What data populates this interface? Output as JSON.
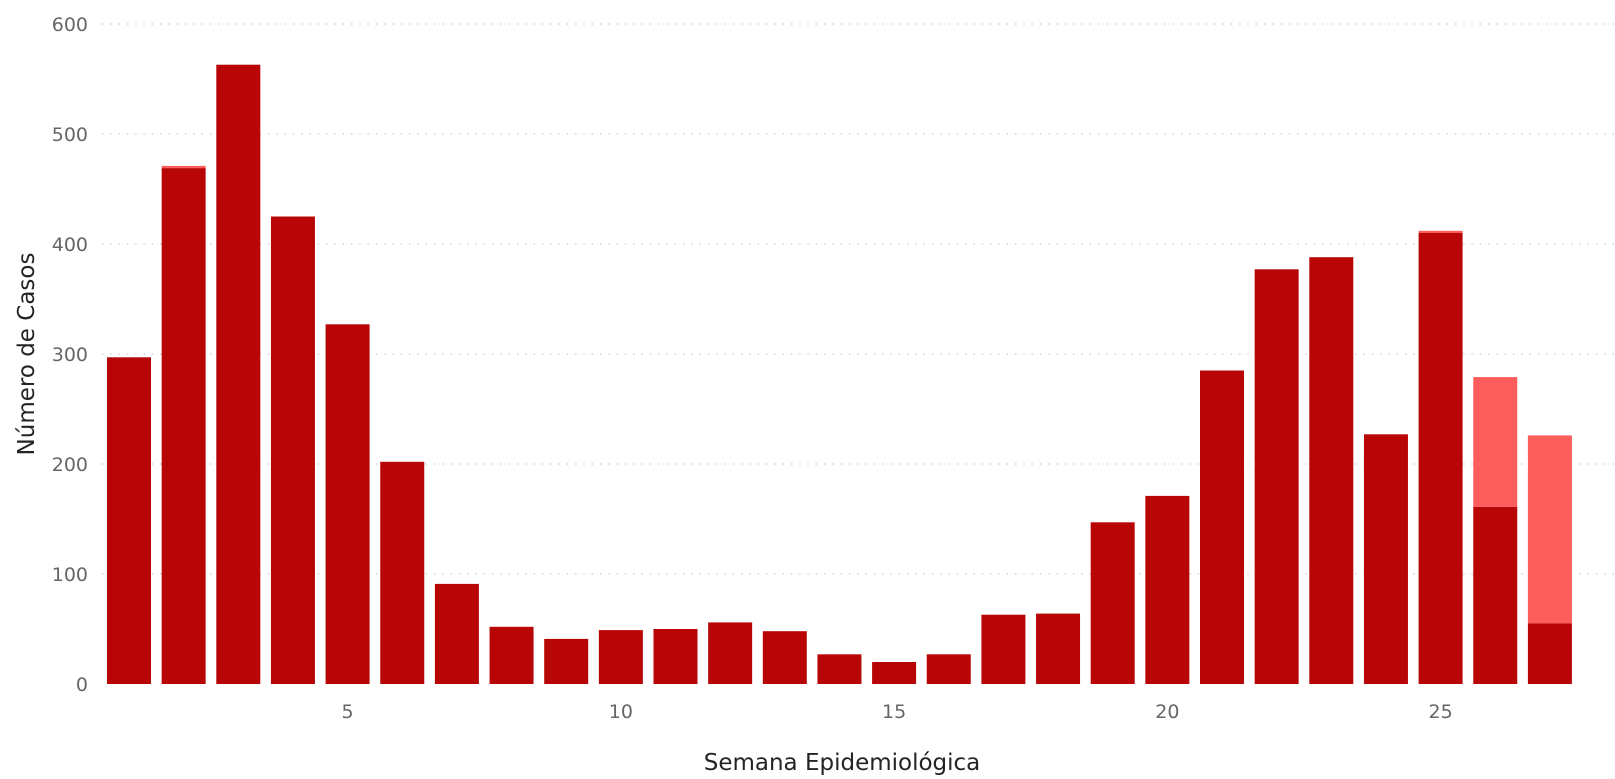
{
  "chart_data": {
    "type": "bar",
    "stacked": true,
    "xlabel": "Semana Epidemiológica",
    "ylabel": "Número de Casos",
    "ylim": [
      0,
      600
    ],
    "yticks": [
      0,
      100,
      200,
      300,
      400,
      500,
      600
    ],
    "xticks": [
      5,
      10,
      15,
      20,
      25
    ],
    "grid": "horizontal dotted",
    "legend": "none",
    "categories": [
      1,
      2,
      3,
      4,
      5,
      6,
      7,
      8,
      9,
      10,
      11,
      12,
      13,
      14,
      15,
      16,
      17,
      18,
      19,
      20,
      21,
      22,
      23,
      24,
      25,
      26,
      27
    ],
    "series": [
      {
        "color": "#b80606",
        "values": [
          297,
          469,
          563,
          425,
          327,
          202,
          91,
          52,
          41,
          49,
          50,
          56,
          48,
          27,
          20,
          27,
          63,
          64,
          147,
          171,
          285,
          377,
          388,
          227,
          410,
          161,
          55
        ]
      },
      {
        "color": "#fd5d5d",
        "values": [
          0,
          2,
          0,
          0,
          0,
          0,
          0,
          0,
          0,
          0,
          0,
          0,
          0,
          0,
          0,
          0,
          0,
          0,
          0,
          0,
          0,
          0,
          0,
          0,
          2,
          118,
          171
        ]
      }
    ]
  }
}
